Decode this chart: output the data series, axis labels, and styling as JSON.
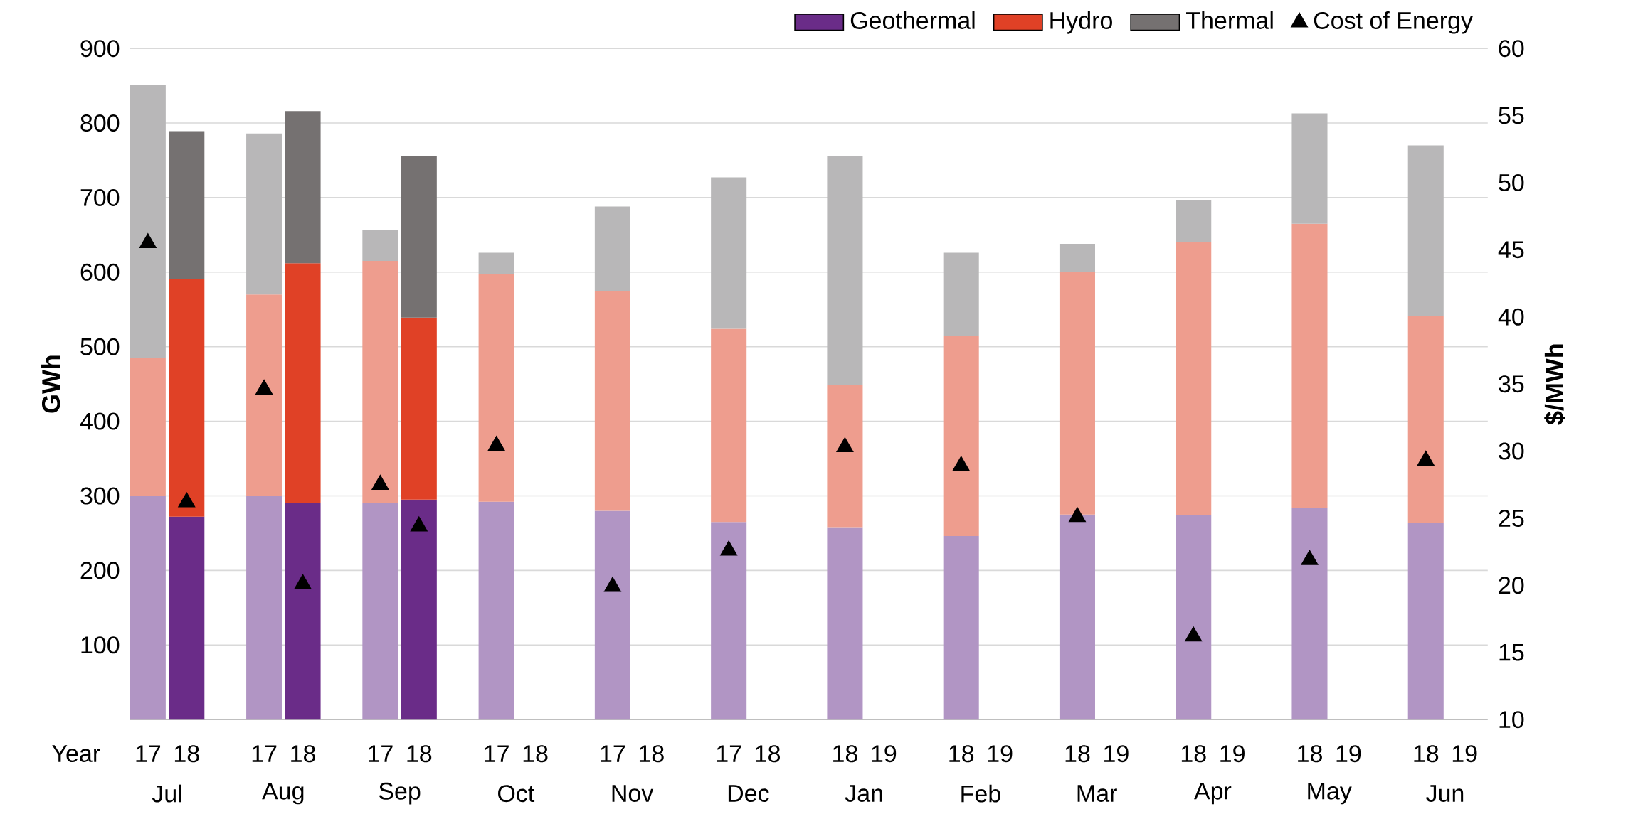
{
  "chart_data": {
    "type": "bar",
    "stacked": true,
    "xlabel": "Year",
    "ylabel": "GWh",
    "y2label": "$/MWh",
    "categories": [
      "17",
      "18",
      "17",
      "18",
      "17",
      "18",
      "17",
      "18",
      "17",
      "18",
      "17",
      "18",
      "18",
      "19",
      "18",
      "19",
      "18",
      "19",
      "18",
      "19",
      "18",
      "19",
      "18",
      "19"
    ],
    "series": [
      {
        "name": "Geothermal",
        "color": "#6a2c88",
        "colors": [
          "#b195c4",
          "#6a2c88",
          "#b195c4",
          "#6a2c88",
          "#b195c4",
          "#6a2c88",
          "#b195c4",
          null,
          "#b195c4",
          null,
          "#b195c4",
          null,
          "#b195c4",
          null,
          "#b195c4",
          null,
          "#b195c4",
          null,
          "#b195c4",
          null,
          "#b195c4",
          null,
          "#b195c4",
          null
        ],
        "values": [
          300,
          272,
          300,
          291,
          290,
          295,
          292,
          null,
          280,
          null,
          265,
          null,
          258,
          null,
          246,
          null,
          275,
          null,
          274,
          null,
          284,
          null,
          264,
          null
        ]
      },
      {
        "name": "Hydro",
        "color": "#e04126",
        "colors": [
          "#ee9d8e",
          "#e04126",
          "#ee9d8e",
          "#e04126",
          "#ee9d8e",
          "#e04126",
          "#ee9d8e",
          null,
          "#ee9d8e",
          null,
          "#ee9d8e",
          null,
          "#ee9d8e",
          null,
          "#ee9d8e",
          null,
          "#ee9d8e",
          null,
          "#ee9d8e",
          null,
          "#ee9d8e",
          null,
          "#ee9d8e",
          null
        ],
        "values": [
          185,
          319,
          270,
          321,
          325,
          244,
          306,
          null,
          294,
          null,
          259,
          null,
          191,
          null,
          268,
          null,
          325,
          null,
          366,
          null,
          381,
          null,
          277,
          null
        ]
      },
      {
        "name": "Thermal",
        "color": "#757171",
        "colors": [
          "#b8b7b8",
          "#757171",
          "#b8b7b8",
          "#757171",
          "#b8b7b8",
          "#757171",
          "#b8b7b8",
          null,
          "#b8b7b8",
          null,
          "#b8b7b8",
          null,
          "#b8b7b8",
          null,
          "#b8b7b8",
          null,
          "#b8b7b8",
          null,
          "#b8b7b8",
          null,
          "#b8b7b8",
          null,
          "#b8b7b8",
          null
        ],
        "values": [
          366,
          198,
          216,
          204,
          42,
          217,
          28,
          null,
          114,
          null,
          203,
          null,
          307,
          null,
          112,
          null,
          38,
          null,
          57,
          null,
          148,
          null,
          229,
          null
        ]
      },
      {
        "name": "Cost of Energy",
        "type": "scatter",
        "axis": "y2",
        "color": "#000000",
        "values": [
          45.5,
          26.2,
          34.6,
          20.1,
          27.5,
          24.4,
          30.4,
          null,
          19.9,
          null,
          22.6,
          null,
          30.3,
          null,
          28.9,
          null,
          25.1,
          null,
          16.2,
          null,
          21.9,
          null,
          29.3,
          null
        ]
      }
    ],
    "annotations": [
      "Jul",
      "Aug",
      "Sep",
      "Oct",
      "Nov",
      "Dec",
      "Jan",
      "Feb",
      "Mar",
      "Apr",
      "May",
      "Jun"
    ],
    "ylim": [
      0,
      900
    ],
    "yticks": [
      100,
      200,
      300,
      400,
      500,
      600,
      700,
      800,
      900
    ],
    "y2lim": [
      10,
      60
    ],
    "y2ticks": [
      10,
      15,
      20,
      25,
      30,
      35,
      40,
      45,
      50,
      55,
      60
    ],
    "grid": "y",
    "legend": "top right",
    "marker": "triangle"
  }
}
